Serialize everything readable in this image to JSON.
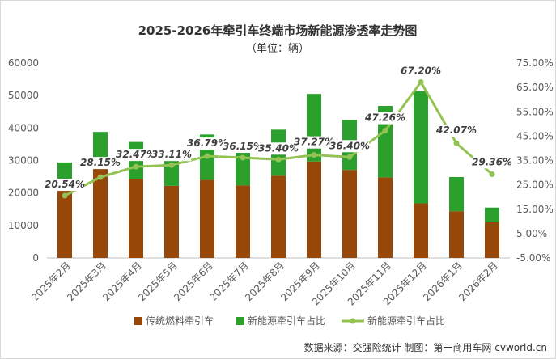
{
  "chart_data": {
    "type": "bar",
    "title": "2025-2026年牵引车终端市场新能源渗透率走势图",
    "subtitle": "（单位：辆）",
    "categories": [
      "2025年2月",
      "2025年3月",
      "2025年4月",
      "2025年5月",
      "2025年6月",
      "2025年7月",
      "2025年8月",
      "2025年9月",
      "2025年10月",
      "2025年11月",
      "2025年12月",
      "2026年1月",
      "2026年2月"
    ],
    "series": [
      {
        "name": "传统燃料牵引车",
        "type": "bar-stacked",
        "axis": "left",
        "color": "#974707",
        "values": [
          23300,
          28000,
          24300,
          22200,
          24000,
          22300,
          25300,
          29700,
          27100,
          24800,
          16800,
          14400,
          11000
        ]
      },
      {
        "name": "新能源牵引车占比",
        "type": "bar-stacked",
        "axis": "left",
        "color": "#2ca02c",
        "values": [
          6100,
          10800,
          11400,
          11000,
          14000,
          12600,
          14200,
          20800,
          15400,
          22000,
          34600,
          10500,
          4500
        ]
      },
      {
        "name": "新能源牵引车占比",
        "type": "line",
        "axis": "right",
        "color": "#92c353",
        "values": [
          20.54,
          28.15,
          32.47,
          33.11,
          36.79,
          36.15,
          35.4,
          37.27,
          36.4,
          47.26,
          67.2,
          42.07,
          29.36
        ],
        "labels": [
          "20.54%",
          "28.15%",
          "32.47%",
          "33.11%",
          "36.79%",
          "36.15%",
          "35.40%",
          "37.27%",
          "36.40%",
          "47.26%",
          "67.20%",
          "42.07%",
          "29.36%"
        ]
      }
    ],
    "y_left": {
      "min": 0,
      "max": 60000,
      "ticks": [
        "0",
        "10000",
        "20000",
        "30000",
        "40000",
        "50000",
        "60000"
      ]
    },
    "y_right": {
      "min": -5,
      "max": 75,
      "ticks": [
        "-5.00%",
        "5.00%",
        "15.00%",
        "25.00%",
        "35.00%",
        "45.00%",
        "55.00%",
        "65.00%",
        "75.00%"
      ]
    },
    "legend_position": "bottom",
    "legend": [
      {
        "label": "传统燃料牵引车",
        "kind": "box",
        "color": "#974707"
      },
      {
        "label": "新能源牵引车占比",
        "kind": "box",
        "color": "#2ca02c"
      },
      {
        "label": "新能源牵引车占比",
        "kind": "line",
        "color": "#92c353"
      }
    ],
    "grid": false,
    "source_note": "数据来源：交强险统计  制图：第一商用车网 cvworld.cn"
  }
}
